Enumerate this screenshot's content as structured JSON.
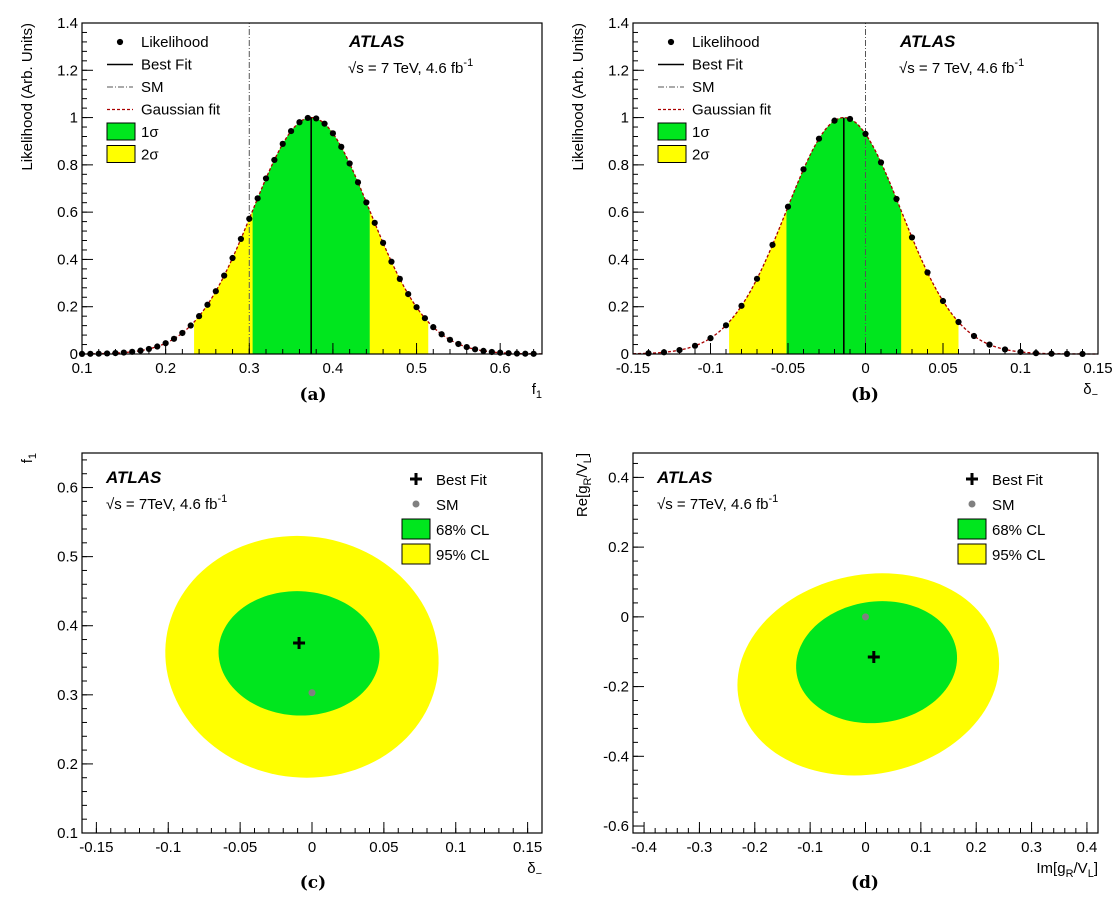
{
  "chart_data": [
    {
      "panel": "a",
      "type": "line",
      "caption": "(a)",
      "xlabel": "f",
      "xlabel_sub": "1",
      "ylabel": "Likelihood (Arb. Units)",
      "xlim": [
        0.1,
        0.65
      ],
      "ylim": [
        0,
        1.4
      ],
      "xticks": [
        0.1,
        0.2,
        0.3,
        0.4,
        0.5,
        0.6
      ],
      "xtick_labels": [
        "0.1",
        "0.2",
        "0.3",
        "0.4",
        "0.5",
        "0.6"
      ],
      "yticks": [
        0,
        0.2,
        0.4,
        0.6,
        0.8,
        1,
        1.2,
        1.4
      ],
      "ytick_labels": [
        "0",
        "0.2",
        "0.4",
        "0.6",
        "0.8",
        "1",
        "1.2",
        "1.4"
      ],
      "gauss": {
        "mean": 0.374,
        "sigma": 0.07
      },
      "best_fit": 0.374,
      "sm": 0.3,
      "band_1sigma": [
        0.304,
        0.444
      ],
      "band_2sigma": [
        0.234,
        0.514
      ],
      "points_x_range": [
        0.1,
        0.64
      ],
      "points_step": 0.01,
      "legend": [
        "Likelihood",
        "Best Fit",
        "SM",
        "Gaussian fit",
        "1σ",
        "2σ"
      ],
      "atlas_label": "ATLAS",
      "energy_label": "√s = 7 TeV, 4.6 fb",
      "energy_sup": "-1"
    },
    {
      "panel": "b",
      "type": "line",
      "caption": "(b)",
      "xlabel": "δ",
      "xlabel_sub": "−",
      "ylabel": "Likelihood (Arb. Units)",
      "xlim": [
        -0.15,
        0.15
      ],
      "ylim": [
        0,
        1.4
      ],
      "xticks": [
        -0.15,
        -0.1,
        -0.05,
        0,
        0.05,
        0.1,
        0.15
      ],
      "xtick_labels": [
        "-0.15",
        "-0.1",
        "-0.05",
        "0",
        "0.05",
        "0.1",
        "0.15"
      ],
      "yticks": [
        0,
        0.2,
        0.4,
        0.6,
        0.8,
        1,
        1.2,
        1.4
      ],
      "ytick_labels": [
        "0",
        "0.2",
        "0.4",
        "0.6",
        "0.8",
        "1",
        "1.2",
        "1.4"
      ],
      "gauss": {
        "mean": -0.014,
        "sigma": 0.037
      },
      "best_fit": -0.014,
      "sm": 0,
      "band_1sigma": [
        -0.051,
        0.023
      ],
      "band_2sigma": [
        -0.088,
        0.06
      ],
      "points_x_range": [
        -0.14,
        0.14
      ],
      "points_step": 0.01,
      "legend": [
        "Likelihood",
        "Best Fit",
        "SM",
        "Gaussian fit",
        "1σ",
        "2σ"
      ],
      "atlas_label": "ATLAS",
      "energy_label": "√s = 7 TeV, 4.6 fb",
      "energy_sup": "-1"
    },
    {
      "panel": "c",
      "type": "contour",
      "caption": "(c)",
      "xlabel": "δ",
      "xlabel_sub": "−",
      "ylabel": "f",
      "ylabel_sub": "1",
      "xlim": [
        -0.16,
        0.16
      ],
      "ylim": [
        0.1,
        0.65
      ],
      "xticks": [
        -0.15,
        -0.1,
        -0.05,
        0,
        0.05,
        0.1,
        0.15
      ],
      "xtick_labels": [
        "-0.15",
        "-0.1",
        "-0.05",
        "0",
        "0.05",
        "0.1",
        "0.15"
      ],
      "yticks": [
        0.1,
        0.2,
        0.3,
        0.4,
        0.5,
        0.6
      ],
      "ytick_labels": [
        "0.1",
        "0.2",
        "0.3",
        "0.4",
        "0.5",
        "0.6"
      ],
      "contour_95": {
        "cx": -0.007,
        "cy": 0.355,
        "rx": 0.095,
        "ry": 0.175,
        "tilt": -0.06
      },
      "contour_68": {
        "cx": -0.009,
        "cy": 0.36,
        "rx": 0.056,
        "ry": 0.09,
        "tilt": -0.04
      },
      "best_fit": [
        -0.009,
        0.375
      ],
      "sm": [
        0,
        0.303
      ],
      "legend": [
        "Best Fit",
        "SM",
        "68% CL",
        "95% CL"
      ],
      "atlas_label": "ATLAS",
      "energy_label": "√s = 7TeV, 4.6 fb",
      "energy_sup": "-1"
    },
    {
      "panel": "d",
      "type": "contour",
      "caption": "(d)",
      "xlabel": "Im[g",
      "xlabel_parts": [
        "Im[g",
        "R",
        "/V",
        "L",
        "]"
      ],
      "ylabel": "Re[g",
      "ylabel_parts": [
        "Re[g",
        "R",
        "/V",
        "L",
        "]"
      ],
      "xlim": [
        -0.42,
        0.42
      ],
      "ylim": [
        -0.62,
        0.47
      ],
      "xticks": [
        -0.4,
        -0.3,
        -0.2,
        -0.1,
        0,
        0.1,
        0.2,
        0.3,
        0.4
      ],
      "xtick_labels": [
        "-0.4",
        "-0.3",
        "-0.2",
        "-0.1",
        "0",
        "0.1",
        "0.2",
        "0.3",
        "0.4"
      ],
      "yticks": [
        -0.6,
        -0.4,
        -0.2,
        0,
        0.2,
        0.4
      ],
      "ytick_labels": [
        "-0.6",
        "-0.4",
        "-0.2",
        "0",
        "0.2",
        "0.4"
      ],
      "contour_95": {
        "cx": 0.005,
        "cy": -0.165,
        "rx": 0.235,
        "ry": 0.29,
        "tilt": 0.18
      },
      "contour_68": {
        "cx": 0.02,
        "cy": -0.13,
        "rx": 0.145,
        "ry": 0.175,
        "tilt": 0.12
      },
      "best_fit": [
        0.015,
        -0.115
      ],
      "sm": [
        0,
        0
      ],
      "legend": [
        "Best Fit",
        "SM",
        "68% CL",
        "95% CL"
      ],
      "atlas_label": "ATLAS",
      "energy_label": "√s = 7TeV, 4.6 fb",
      "energy_sup": "-1"
    }
  ],
  "colors": {
    "band_1sigma": "#00e61e",
    "band_2sigma": "#ffff00",
    "cl68": "#00e61e",
    "cl95": "#ffff00",
    "gauss": "#aa0000",
    "points": "#000000",
    "sm_point": "#808080"
  }
}
